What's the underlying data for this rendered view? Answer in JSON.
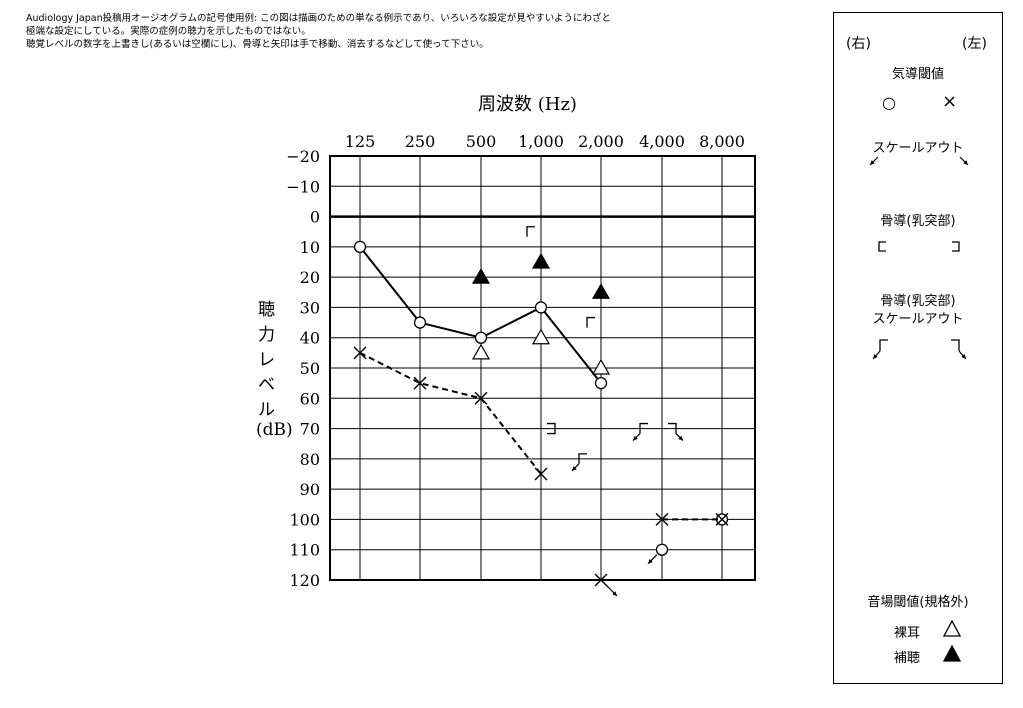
{
  "note_lines": [
    "Audiology Japan投稿用オージオグラムの記号使用例: この図は描画のための単なる例示であり、いろいろな設定が見やすいようにわざと",
    "極端な設定にしている。実際の症例の聴力を示したものではない。",
    "聴覚レベルの数字を上書きし(あるいは空欄にし)、骨導と矢印は手で移動、消去するなどして使って下さい。"
  ],
  "chart_data": {
    "type": "line",
    "title": "周波数 (Hz)",
    "ylabel_chars": [
      "聴",
      "力",
      "レ",
      "ベ",
      "ル"
    ],
    "ylabel_unit": "(dB)",
    "x_categories": [
      "125",
      "250",
      "500",
      "1,000",
      "2,000",
      "4,000",
      "8,000"
    ],
    "y_ticks": [
      "−20",
      "−10",
      "0",
      "10",
      "20",
      "30",
      "40",
      "50",
      "60",
      "70",
      "80",
      "90",
      "100",
      "110",
      "120"
    ],
    "ylim": [
      -20,
      120
    ],
    "y_inverted": true,
    "grid": true,
    "series": [
      {
        "points": [
          {
            "x": "125",
            "y": 10
          },
          {
            "x": "250",
            "y": 35
          },
          {
            "x": "500",
            "y": 40
          },
          {
            "x": "1,000",
            "y": 30
          },
          {
            "x": "2,000",
            "y": 55
          }
        ],
        "marker": "circle",
        "line": "solid"
      },
      {
        "points": [
          {
            "x": "4,000",
            "y": 110
          },
          {
            "x": "8,000",
            "y": 100
          }
        ],
        "marker": "circle",
        "line": "none",
        "scaleout": [
          true,
          false
        ]
      },
      {
        "points": [
          {
            "x": "125",
            "y": 45
          },
          {
            "x": "250",
            "y": 55
          },
          {
            "x": "500",
            "y": 60
          },
          {
            "x": "1,000",
            "y": 85
          }
        ],
        "marker": "cross",
        "line": "dashed"
      },
      {
        "points": [
          {
            "x": "2,000",
            "y": 120
          }
        ],
        "marker": "cross",
        "line": "none",
        "scaleout": [
          true
        ]
      },
      {
        "points": [
          {
            "x": "4,000",
            "y": 100
          },
          {
            "x": "8,000",
            "y": 100
          }
        ],
        "marker": "cross",
        "line": "dashed"
      },
      {
        "points": [
          {
            "x": "500",
            "y": 45
          },
          {
            "x": "1,000",
            "y": 40
          },
          {
            "x": "2,000",
            "y": 50
          }
        ],
        "marker": "triangle-open",
        "line": "none"
      },
      {
        "points": [
          {
            "x": "500",
            "y": 20
          },
          {
            "x": "1,000",
            "y": 15
          },
          {
            "x": "2,000",
            "y": 25
          }
        ],
        "marker": "triangle-filled",
        "line": "none"
      },
      {
        "points": [
          {
            "x": "1,000",
            "y": 5
          },
          {
            "x": "2,000",
            "y": 35
          }
        ],
        "marker": "bone-right",
        "line": "none"
      },
      {
        "points": [
          {
            "x": "1,000",
            "y": 70
          }
        ],
        "marker": "bone-left",
        "line": "none"
      },
      {
        "points": [
          {
            "x": "2,000",
            "y": 80
          },
          {
            "x": "4,000",
            "y": 70
          }
        ],
        "marker": "bone-right-scaleout",
        "line": "none"
      },
      {
        "points": [
          {
            "x": "4,000",
            "y": 70
          }
        ],
        "marker": "bone-left-scaleout",
        "line": "none"
      }
    ]
  },
  "legend": {
    "right_label": "(右)",
    "left_label": "(左)",
    "air_title": "気導閾値",
    "air_right_symbol": "○",
    "air_left_symbol": "×",
    "scaleout_title": "スケールアウト",
    "bone_title": "骨導(乳突部)",
    "bone_scaleout_title_1": "骨導(乳突部)",
    "bone_scaleout_title_2": "スケールアウト",
    "soundfield_title": "音場閾値(規格外)",
    "unaided_label": "裸耳",
    "aided_label": "補聴"
  },
  "colors": {
    "ink": "#000000",
    "background": "#ffffff"
  }
}
